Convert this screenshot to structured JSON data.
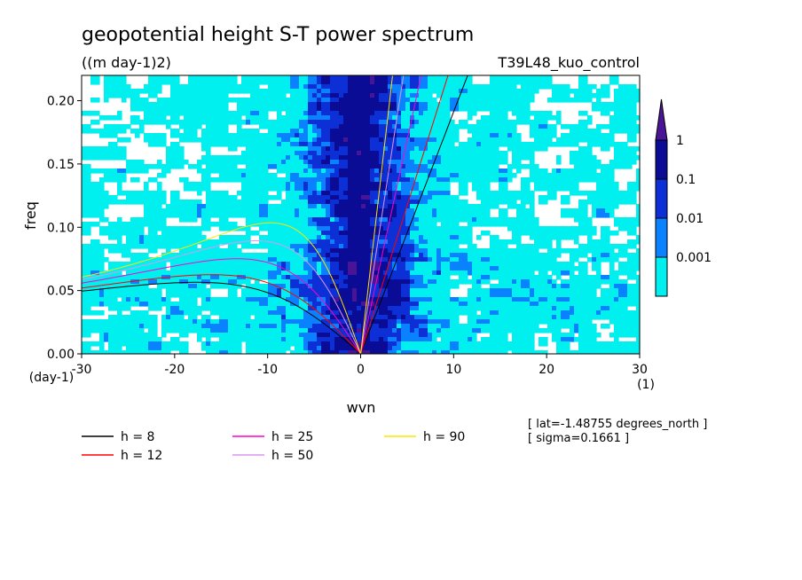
{
  "title": "geopotential height S-T power spectrum",
  "units": "((m day-1)2)",
  "run_name": "T39L48_kuo_control",
  "info_lines": [
    "[ lat=-1.48755 degrees_north ]",
    "[ sigma=0.1661 ]"
  ],
  "chart_data": {
    "type": "heatmap",
    "xlabel": "wvn",
    "ylabel": "freq",
    "x_unit": "(1)",
    "y_unit": "(day-1)",
    "xlim": [
      -30,
      30
    ],
    "ylim": [
      0,
      0.22
    ],
    "x_ticks": [
      -30,
      -20,
      -10,
      0,
      10,
      20,
      30
    ],
    "x_tick_labels": [
      "-30",
      "-20",
      "-10",
      "0",
      "10",
      "20",
      "30"
    ],
    "y_ticks": [
      0,
      0.05,
      0.1,
      0.15,
      0.2
    ],
    "y_tick_labels": [
      "0.00",
      "0.05",
      "0.10",
      "0.15",
      "0.20"
    ],
    "colorbar": {
      "levels": [
        0.001,
        0.01,
        0.1,
        1
      ],
      "labels": [
        "0.001",
        "0.01",
        "0.1",
        "1"
      ],
      "colors": [
        "#00f0f0",
        "#0a82ff",
        "#0c2fd6",
        "#0a0c96",
        "#4a1496"
      ]
    },
    "series": [
      {
        "name": "h =  8",
        "h": 8,
        "color": "#000000"
      },
      {
        "name": "h = 12",
        "h": 12,
        "color": "#ff0000"
      },
      {
        "name": "h = 25",
        "h": 25,
        "color": "#ff00cc"
      },
      {
        "name": "h = 50",
        "h": 50,
        "color": "#dc96f0"
      },
      {
        "name": "h = 90",
        "h": 90,
        "color": "#ffe600"
      }
    ]
  }
}
